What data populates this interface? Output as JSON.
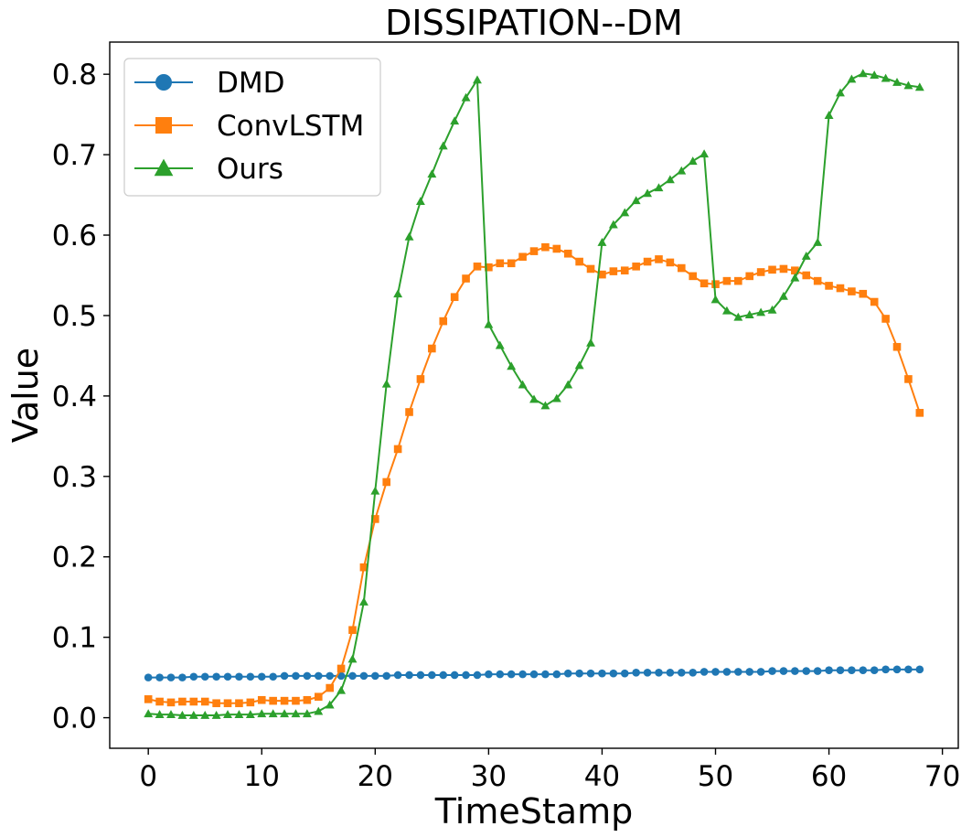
{
  "chart_data": {
    "type": "line",
    "title": "DISSIPATION--DM",
    "xlabel": "TimeStamp",
    "ylabel": "Value",
    "xlim": [
      -3.4,
      71.4
    ],
    "ylim": [
      -0.038,
      0.84
    ],
    "xticks": [
      0,
      10,
      20,
      30,
      40,
      50,
      60,
      70
    ],
    "yticks": [
      0.0,
      0.1,
      0.2,
      0.3,
      0.4,
      0.5,
      0.6,
      0.7,
      0.8
    ],
    "xtick_labels": [
      "0",
      "10",
      "20",
      "30",
      "40",
      "50",
      "60",
      "70"
    ],
    "ytick_labels": [
      "0.0",
      "0.1",
      "0.2",
      "0.3",
      "0.4",
      "0.5",
      "0.6",
      "0.7",
      "0.8"
    ],
    "grid": false,
    "legend_position": "upper-left",
    "x": [
      0,
      1,
      2,
      3,
      4,
      5,
      6,
      7,
      8,
      9,
      10,
      11,
      12,
      13,
      14,
      15,
      16,
      17,
      18,
      19,
      20,
      21,
      22,
      23,
      24,
      25,
      26,
      27,
      28,
      29,
      30,
      31,
      32,
      33,
      34,
      35,
      36,
      37,
      38,
      39,
      40,
      41,
      42,
      43,
      44,
      45,
      46,
      47,
      48,
      49,
      50,
      51,
      52,
      53,
      54,
      55,
      56,
      57,
      58,
      59,
      60,
      61,
      62,
      63,
      64,
      65,
      66,
      67,
      68
    ],
    "series": [
      {
        "name": "DMD",
        "color": "#1f77b4",
        "marker": "circle",
        "values": [
          0.05,
          0.05,
          0.05,
          0.05,
          0.051,
          0.051,
          0.051,
          0.051,
          0.051,
          0.051,
          0.051,
          0.051,
          0.052,
          0.052,
          0.052,
          0.052,
          0.052,
          0.052,
          0.052,
          0.052,
          0.052,
          0.052,
          0.053,
          0.053,
          0.053,
          0.053,
          0.053,
          0.053,
          0.053,
          0.053,
          0.054,
          0.054,
          0.054,
          0.054,
          0.054,
          0.054,
          0.054,
          0.055,
          0.055,
          0.055,
          0.055,
          0.055,
          0.055,
          0.056,
          0.056,
          0.056,
          0.056,
          0.056,
          0.056,
          0.057,
          0.057,
          0.057,
          0.057,
          0.057,
          0.057,
          0.058,
          0.058,
          0.058,
          0.058,
          0.058,
          0.059,
          0.059,
          0.059,
          0.059,
          0.059,
          0.06,
          0.06,
          0.06,
          0.06
        ]
      },
      {
        "name": "ConvLSTM",
        "color": "#ff7f0e",
        "marker": "square",
        "values": [
          0.023,
          0.02,
          0.019,
          0.02,
          0.02,
          0.02,
          0.018,
          0.018,
          0.018,
          0.019,
          0.022,
          0.021,
          0.021,
          0.021,
          0.022,
          0.026,
          0.037,
          0.061,
          0.109,
          0.187,
          0.247,
          0.293,
          0.334,
          0.38,
          0.421,
          0.459,
          0.493,
          0.523,
          0.546,
          0.561,
          0.56,
          0.565,
          0.565,
          0.573,
          0.58,
          0.585,
          0.583,
          0.577,
          0.567,
          0.558,
          0.551,
          0.555,
          0.556,
          0.561,
          0.567,
          0.57,
          0.566,
          0.559,
          0.549,
          0.54,
          0.539,
          0.543,
          0.543,
          0.549,
          0.554,
          0.557,
          0.558,
          0.556,
          0.55,
          0.543,
          0.537,
          0.534,
          0.53,
          0.527,
          0.517,
          0.496,
          0.461,
          0.421,
          0.379
        ]
      },
      {
        "name": "Ours",
        "color": "#2ca02c",
        "marker": "triangle",
        "values": [
          0.005,
          0.004,
          0.004,
          0.003,
          0.003,
          0.003,
          0.003,
          0.004,
          0.004,
          0.004,
          0.005,
          0.005,
          0.005,
          0.005,
          0.005,
          0.008,
          0.016,
          0.034,
          0.073,
          0.144,
          0.282,
          0.415,
          0.527,
          0.598,
          0.642,
          0.676,
          0.711,
          0.742,
          0.771,
          0.793,
          0.489,
          0.463,
          0.437,
          0.414,
          0.396,
          0.388,
          0.397,
          0.414,
          0.438,
          0.466,
          0.591,
          0.613,
          0.628,
          0.643,
          0.652,
          0.659,
          0.669,
          0.68,
          0.692,
          0.701,
          0.52,
          0.506,
          0.498,
          0.501,
          0.504,
          0.507,
          0.524,
          0.547,
          0.574,
          0.591,
          0.749,
          0.777,
          0.794,
          0.801,
          0.799,
          0.795,
          0.79,
          0.786,
          0.784
        ]
      }
    ]
  }
}
